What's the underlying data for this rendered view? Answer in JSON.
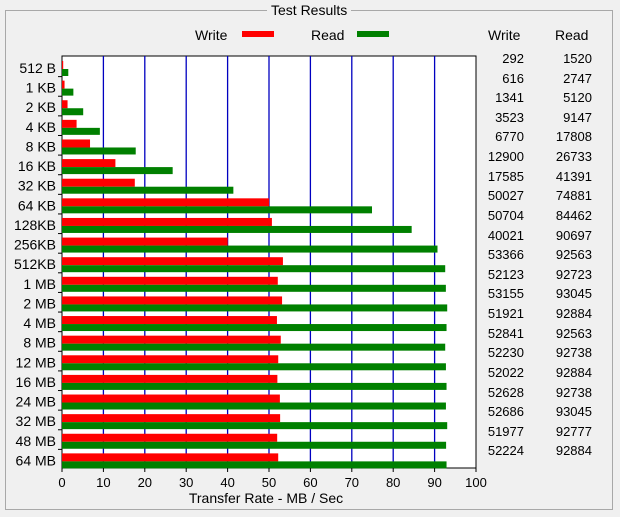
{
  "window": {
    "group_title": "Test Results"
  },
  "legend": {
    "write_label": "Write",
    "read_label": "Read"
  },
  "table": {
    "write_header": "Write",
    "read_header": "Read"
  },
  "colors": {
    "write": "#ff0000",
    "read": "#008000",
    "grid": "#0000c0"
  },
  "chart_data": {
    "type": "bar",
    "orientation": "horizontal",
    "xlabel": "Transfer Rate - MB / Sec",
    "xlim": [
      0,
      100
    ],
    "xticks": [
      0,
      10,
      20,
      30,
      40,
      50,
      60,
      70,
      80,
      90,
      100
    ],
    "grid": true,
    "legend_position": "top",
    "categories": [
      "512 B",
      "1 KB",
      "2 KB",
      "4 KB",
      "8 KB",
      "16 KB",
      "32 KB",
      "64 KB",
      "128KB",
      "256KB",
      "512KB",
      "1 MB",
      "2 MB",
      "4 MB",
      "8 MB",
      "12 MB",
      "16 MB",
      "24 MB",
      "32 MB",
      "48 MB",
      "64 MB"
    ],
    "series": [
      {
        "name": "Write",
        "color": "#ff0000",
        "values": [
          292,
          616,
          1341,
          3523,
          6770,
          12900,
          17585,
          50027,
          50704,
          40021,
          53366,
          52123,
          53155,
          51921,
          52841,
          52230,
          52022,
          52628,
          52686,
          51977,
          52224
        ]
      },
      {
        "name": "Read",
        "color": "#008000",
        "values": [
          1520,
          2747,
          5120,
          9147,
          17808,
          26733,
          41391,
          74881,
          84462,
          90697,
          92563,
          92723,
          93045,
          92884,
          92563,
          92738,
          92884,
          92738,
          93045,
          92777,
          92884
        ]
      }
    ]
  }
}
